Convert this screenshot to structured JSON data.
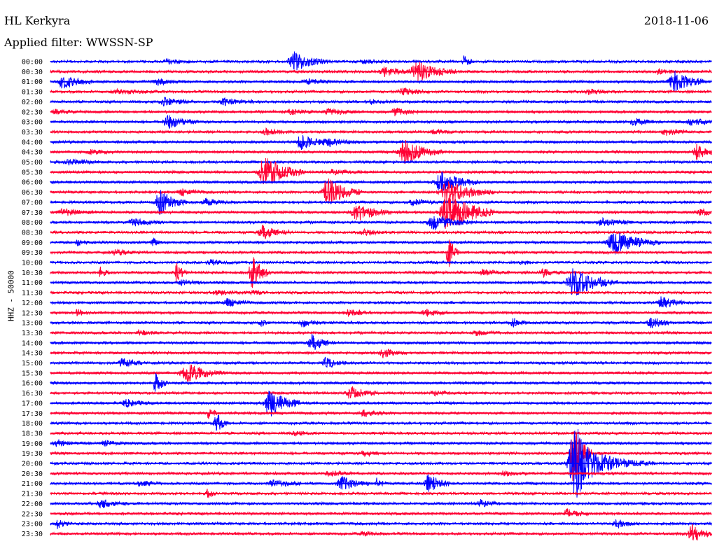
{
  "header": {
    "station": "HL Kerkyra",
    "date": "2018-11-06",
    "filter_label": "Applied filter: WWSSN-SP"
  },
  "chart_data": {
    "type": "line",
    "title": "HL Kerkyra",
    "ylabel": "HHZ - 50000",
    "row_labels": [
      "00:00",
      "00:30",
      "01:00",
      "01:30",
      "02:00",
      "02:30",
      "03:00",
      "03:30",
      "04:00",
      "04:30",
      "05:00",
      "05:30",
      "06:00",
      "06:30",
      "07:00",
      "07:30",
      "08:00",
      "08:30",
      "09:00",
      "09:30",
      "10:00",
      "10:30",
      "11:00",
      "11:30",
      "12:00",
      "12:30",
      "13:00",
      "13:30",
      "14:00",
      "14:30",
      "15:00",
      "15:30",
      "16:00",
      "16:30",
      "17:00",
      "17:30",
      "18:00",
      "18:30",
      "19:00",
      "19:30",
      "20:00",
      "20:30",
      "21:00",
      "21:30",
      "22:00",
      "22:30",
      "23:00",
      "23:30"
    ],
    "colors": [
      "#0000ff",
      "#ff0033"
    ],
    "x_range_minutes": [
      0,
      30
    ],
    "grid": false
  }
}
